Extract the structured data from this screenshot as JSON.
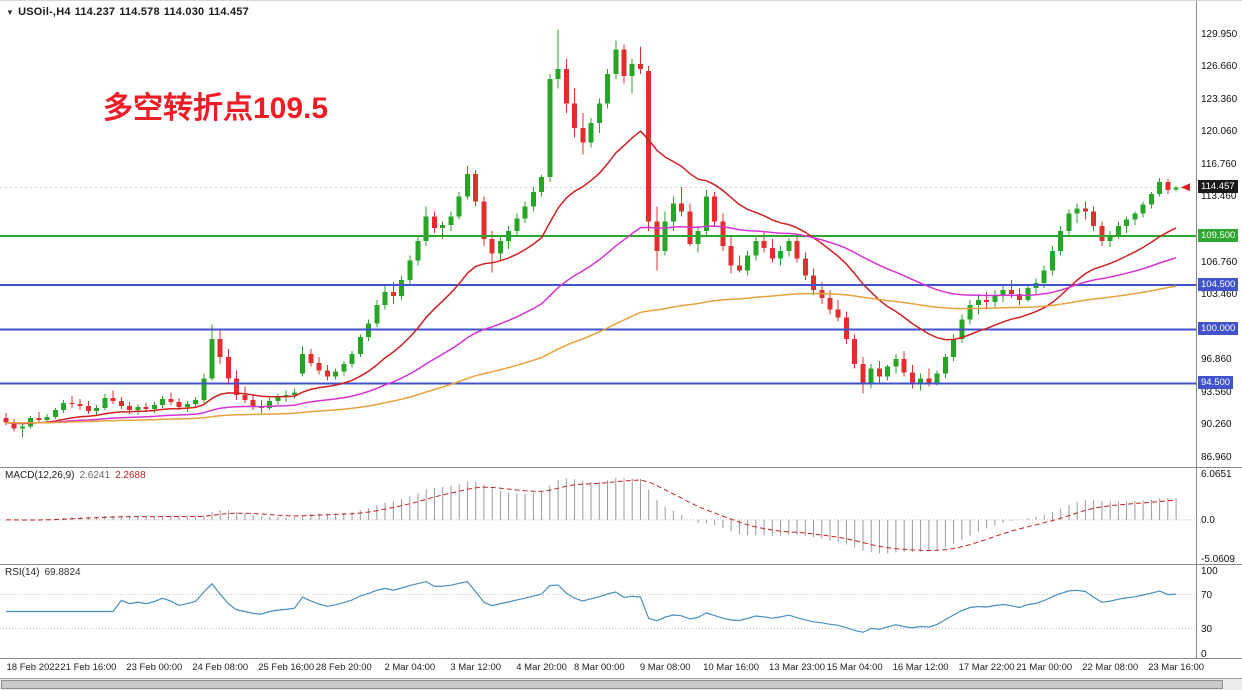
{
  "header": {
    "collapse_icon": "▼",
    "symbol": "USOil-,H4",
    "open": "114.237",
    "high": "114.578",
    "low": "114.030",
    "close": "114.457"
  },
  "annotation": {
    "text": "多空转折点109.5",
    "color": "#ee1c25"
  },
  "colors": {
    "candle_up": "#27a527",
    "candle_down": "#e12f2f",
    "current_price_box": "#1a1a1a",
    "current_price_arrow": "#d42222",
    "macd_hist": "#9a9a9a",
    "macd_signal": "#c32222",
    "rsi_line": "#4a8fc0"
  },
  "chart_data": {
    "type": "candlestick",
    "symbol": "USOil-",
    "timeframe": "H4",
    "title": "USOil-,H4 114.237 114.578 114.030 114.457",
    "current": {
      "open": 114.237,
      "high": 114.578,
      "low": 114.03,
      "close": 114.457
    },
    "last_price_label": "114.457",
    "price_range": {
      "min": 86.2,
      "max": 132.6
    },
    "price_axis_ticks": [
      129.95,
      126.66,
      123.36,
      120.06,
      116.76,
      113.46,
      106.76,
      103.46,
      96.86,
      93.56,
      90.26,
      86.96
    ],
    "hlines": [
      {
        "value": 109.5,
        "label": "109.500",
        "color": "#2fa62f"
      },
      {
        "value": 104.5,
        "label": "104.500",
        "color": "#4053cc"
      },
      {
        "value": 100.0,
        "label": "100.000",
        "color": "#4053cc"
      },
      {
        "value": 94.5,
        "label": "94.500",
        "color": "#4053cc"
      }
    ],
    "moving_averages": [
      {
        "period": 20,
        "color": "#d02020"
      },
      {
        "period": 55,
        "color": "#d633d6"
      },
      {
        "period": 130,
        "color": "#e8a33c"
      }
    ],
    "time_labels": [
      {
        "label": "18 Feb 2022",
        "index": 2
      },
      {
        "label": "21 Feb 16:00",
        "index": 10
      },
      {
        "label": "23 Feb 00:00",
        "index": 18
      },
      {
        "label": "24 Feb 08:00",
        "index": 26
      },
      {
        "label": "25 Feb 16:00",
        "index": 34
      },
      {
        "label": "28 Feb 20:00",
        "index": 41
      },
      {
        "label": "2 Mar 04:00",
        "index": 49
      },
      {
        "label": "3 Mar 12:00",
        "index": 57
      },
      {
        "label": "4 Mar 20:00",
        "index": 65
      },
      {
        "label": "8 Mar 00:00",
        "index": 72
      },
      {
        "label": "9 Mar 08:00",
        "index": 80
      },
      {
        "label": "10 Mar 16:00",
        "index": 88
      },
      {
        "label": "13 Mar 23:00",
        "index": 96
      },
      {
        "label": "15 Mar 04:00",
        "index": 103
      },
      {
        "label": "16 Mar 12:00",
        "index": 111
      },
      {
        "label": "17 Mar 22:00",
        "index": 119
      },
      {
        "label": "21 Mar 00:00",
        "index": 126
      },
      {
        "label": "22 Mar 08:00",
        "index": 134
      },
      {
        "label": "23 Mar 16:00",
        "index": 142
      }
    ],
    "candles": [
      [
        91.0,
        91.5,
        90.2,
        90.5
      ],
      [
        90.5,
        90.9,
        89.6,
        89.9
      ],
      [
        89.9,
        90.4,
        89.0,
        90.1
      ],
      [
        90.1,
        91.2,
        89.9,
        91.0
      ],
      [
        91.0,
        91.6,
        90.5,
        90.8
      ],
      [
        90.8,
        91.4,
        90.4,
        91.1
      ],
      [
        91.1,
        92.0,
        90.9,
        91.8
      ],
      [
        91.8,
        92.8,
        91.5,
        92.5
      ],
      [
        92.5,
        93.2,
        92.0,
        92.4
      ],
      [
        92.4,
        92.9,
        91.8,
        92.2
      ],
      [
        92.2,
        92.7,
        91.4,
        91.7
      ],
      [
        91.7,
        92.3,
        91.2,
        92.0
      ],
      [
        92.0,
        93.5,
        91.8,
        93.0
      ],
      [
        93.0,
        93.8,
        92.4,
        92.7
      ],
      [
        92.7,
        93.1,
        91.9,
        92.2
      ],
      [
        92.2,
        92.6,
        91.4,
        91.8
      ],
      [
        91.8,
        92.4,
        91.3,
        92.1
      ],
      [
        92.1,
        92.5,
        91.6,
        91.9
      ],
      [
        91.9,
        92.6,
        91.5,
        92.3
      ],
      [
        92.3,
        93.2,
        92.0,
        92.9
      ],
      [
        92.9,
        93.6,
        92.3,
        92.6
      ],
      [
        92.6,
        93.0,
        91.8,
        92.1
      ],
      [
        92.1,
        92.7,
        91.6,
        92.4
      ],
      [
        92.4,
        93.1,
        92.0,
        92.8
      ],
      [
        92.8,
        95.5,
        92.5,
        95.0
      ],
      [
        95.0,
        100.5,
        94.8,
        99.0
      ],
      [
        99.0,
        100.0,
        96.5,
        97.2
      ],
      [
        97.2,
        98.0,
        94.5,
        95.0
      ],
      [
        95.0,
        95.8,
        92.8,
        93.3
      ],
      [
        93.3,
        94.2,
        92.5,
        92.8
      ],
      [
        92.8,
        93.4,
        91.8,
        92.2
      ],
      [
        92.2,
        92.8,
        91.5,
        92.0
      ],
      [
        92.0,
        93.0,
        91.8,
        92.7
      ],
      [
        92.7,
        93.5,
        92.3,
        93.1
      ],
      [
        93.1,
        93.8,
        92.6,
        93.3
      ],
      [
        93.3,
        94.0,
        92.9,
        93.6
      ],
      [
        95.5,
        98.3,
        95.2,
        97.5
      ],
      [
        97.5,
        98.0,
        96.2,
        96.6
      ],
      [
        96.6,
        97.2,
        95.4,
        95.8
      ],
      [
        95.8,
        96.4,
        94.8,
        95.2
      ],
      [
        95.2,
        96.0,
        94.9,
        95.7
      ],
      [
        95.7,
        96.8,
        95.3,
        96.5
      ],
      [
        96.5,
        97.8,
        96.1,
        97.5
      ],
      [
        97.5,
        99.5,
        97.2,
        99.2
      ],
      [
        99.2,
        101.0,
        98.8,
        100.6
      ],
      [
        100.6,
        103.0,
        100.2,
        102.5
      ],
      [
        102.5,
        104.5,
        102.0,
        103.8
      ],
      [
        103.8,
        104.8,
        102.6,
        103.4
      ],
      [
        103.4,
        105.5,
        103.0,
        105.0
      ],
      [
        105.0,
        107.5,
        104.6,
        107.0
      ],
      [
        107.0,
        109.5,
        106.5,
        109.0
      ],
      [
        109.0,
        112.5,
        108.5,
        111.5
      ],
      [
        111.5,
        112.0,
        109.8,
        110.3
      ],
      [
        110.3,
        111.0,
        109.2,
        110.6
      ],
      [
        110.6,
        112.0,
        110.0,
        111.5
      ],
      [
        111.5,
        114.0,
        111.2,
        113.5
      ],
      [
        113.5,
        116.6,
        113.2,
        115.8
      ],
      [
        115.8,
        116.2,
        112.5,
        113.0
      ],
      [
        113.0,
        113.5,
        108.5,
        109.2
      ],
      [
        109.2,
        110.0,
        105.8,
        107.7
      ],
      [
        107.7,
        109.5,
        107.0,
        109.0
      ],
      [
        109.0,
        110.5,
        108.2,
        110.0
      ],
      [
        110.0,
        111.8,
        109.5,
        111.3
      ],
      [
        111.3,
        113.0,
        110.8,
        112.5
      ],
      [
        112.5,
        114.5,
        112.0,
        114.0
      ],
      [
        114.0,
        115.7,
        113.5,
        115.5
      ],
      [
        115.5,
        126.0,
        115.0,
        125.5
      ],
      [
        125.5,
        130.5,
        124.5,
        126.5
      ],
      [
        126.5,
        127.5,
        122.0,
        123.0
      ],
      [
        123.0,
        124.5,
        119.5,
        120.5
      ],
      [
        120.5,
        122.0,
        117.8,
        119.0
      ],
      [
        119.0,
        121.5,
        118.5,
        121.0
      ],
      [
        121.0,
        123.5,
        120.0,
        123.0
      ],
      [
        123.0,
        126.5,
        122.5,
        126.0
      ],
      [
        126.0,
        129.4,
        125.5,
        128.5
      ],
      [
        128.5,
        129.0,
        125.0,
        125.8
      ],
      [
        125.8,
        127.5,
        124.0,
        127.0
      ],
      [
        127.0,
        128.8,
        126.0,
        126.5
      ],
      [
        126.3,
        126.8,
        110.0,
        111.0
      ],
      [
        111.0,
        112.5,
        106.0,
        108.0
      ],
      [
        108.0,
        112.0,
        107.5,
        111.0
      ],
      [
        111.0,
        113.5,
        110.0,
        112.8
      ],
      [
        112.8,
        114.5,
        111.5,
        112.0
      ],
      [
        112.0,
        112.8,
        108.5,
        108.7
      ],
      [
        108.7,
        110.5,
        107.8,
        110.0
      ],
      [
        110.0,
        114.2,
        109.5,
        113.5
      ],
      [
        113.5,
        114.0,
        110.5,
        111.0
      ],
      [
        111.0,
        111.8,
        108.0,
        108.5
      ],
      [
        108.5,
        109.5,
        105.7,
        106.5
      ],
      [
        106.5,
        107.5,
        105.8,
        106.0
      ],
      [
        106.0,
        108.0,
        105.5,
        107.5
      ],
      [
        107.5,
        109.5,
        107.0,
        109.0
      ],
      [
        109.0,
        110.0,
        107.8,
        108.3
      ],
      [
        108.3,
        109.2,
        106.8,
        107.2
      ],
      [
        107.2,
        108.5,
        106.5,
        108.0
      ],
      [
        108.0,
        109.3,
        107.4,
        109.0
      ],
      [
        109.0,
        109.5,
        106.8,
        107.2
      ],
      [
        107.2,
        107.8,
        105.0,
        105.5
      ],
      [
        105.5,
        106.2,
        103.5,
        104.0
      ],
      [
        104.0,
        104.8,
        102.6,
        103.2
      ],
      [
        103.2,
        104.0,
        101.5,
        102.0
      ],
      [
        102.0,
        103.0,
        100.8,
        101.2
      ],
      [
        101.2,
        101.8,
        98.5,
        99.0
      ],
      [
        99.0,
        99.5,
        96.0,
        96.5
      ],
      [
        96.5,
        97.2,
        93.5,
        94.5
      ],
      [
        94.5,
        96.5,
        94.0,
        96.0
      ],
      [
        96.0,
        96.8,
        94.6,
        95.2
      ],
      [
        95.2,
        96.4,
        94.8,
        96.2
      ],
      [
        96.2,
        97.5,
        95.5,
        97.0
      ],
      [
        97.0,
        97.8,
        95.2,
        95.6
      ],
      [
        95.6,
        96.4,
        94.0,
        94.5
      ],
      [
        94.5,
        95.5,
        93.8,
        95.0
      ],
      [
        95.0,
        96.0,
        94.2,
        94.6
      ],
      [
        94.6,
        95.8,
        94.3,
        95.5
      ],
      [
        95.5,
        97.5,
        95.0,
        97.2
      ],
      [
        97.2,
        99.5,
        96.8,
        99.0
      ],
      [
        99.0,
        101.5,
        98.6,
        101.0
      ],
      [
        101.0,
        103.0,
        100.5,
        102.5
      ],
      [
        102.5,
        103.6,
        101.5,
        103.0
      ],
      [
        103.0,
        103.8,
        102.0,
        102.8
      ],
      [
        102.8,
        104.0,
        102.2,
        103.5
      ],
      [
        103.5,
        104.5,
        102.8,
        104.0
      ],
      [
        104.0,
        105.0,
        103.2,
        103.6
      ],
      [
        103.6,
        104.2,
        102.5,
        103.0
      ],
      [
        103.0,
        104.5,
        102.8,
        104.2
      ],
      [
        104.2,
        105.2,
        103.6,
        104.7
      ],
      [
        104.7,
        106.5,
        104.2,
        106.0
      ],
      [
        106.0,
        108.5,
        105.5,
        108.0
      ],
      [
        108.0,
        110.5,
        107.5,
        110.0
      ],
      [
        110.0,
        112.2,
        109.5,
        111.8
      ],
      [
        111.8,
        112.8,
        110.8,
        112.3
      ],
      [
        112.3,
        113.0,
        111.2,
        112.0
      ],
      [
        112.0,
        112.5,
        110.0,
        110.5
      ],
      [
        110.5,
        111.0,
        108.5,
        109.0
      ],
      [
        109.0,
        110.0,
        108.4,
        109.6
      ],
      [
        109.6,
        111.0,
        109.2,
        110.5
      ],
      [
        110.5,
        111.5,
        109.8,
        111.2
      ],
      [
        111.2,
        112.0,
        110.6,
        111.8
      ],
      [
        111.8,
        113.0,
        111.4,
        112.7
      ],
      [
        112.7,
        114.0,
        112.3,
        113.8
      ],
      [
        113.8,
        115.4,
        113.5,
        115.0
      ],
      [
        115.0,
        115.3,
        113.8,
        114.2
      ],
      [
        114.237,
        114.578,
        114.03,
        114.457
      ]
    ],
    "indicators": {
      "macd": {
        "label": "MACD(12,26,9)",
        "main_value": "2.6241",
        "signal_value": "2.2688",
        "params": [
          12,
          26,
          9
        ],
        "axis_ticks": [
          {
            "v": 6.0651,
            "t": "6.0651"
          },
          {
            "v": 0,
            "t": "0.0"
          },
          {
            "v": -5.0609,
            "t": "-5.0609"
          }
        ]
      },
      "rsi": {
        "label": "RSI(14)",
        "value_text": "69.8824",
        "period": 14,
        "levels": [
          70,
          30
        ],
        "axis_ticks": [
          {
            "v": 100,
            "t": "100"
          },
          {
            "v": 70,
            "t": "70"
          },
          {
            "v": 30,
            "t": "30"
          },
          {
            "v": 0,
            "t": "0"
          }
        ]
      }
    }
  }
}
